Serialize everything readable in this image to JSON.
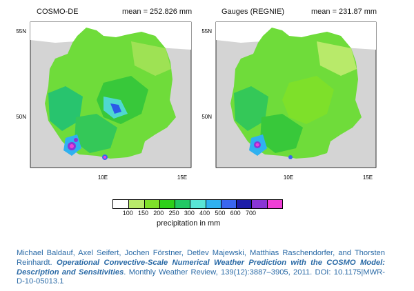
{
  "panels": [
    {
      "title": "COSMO-DE",
      "mean_label": "mean = 252.826 mm"
    },
    {
      "title": "Gauges (REGNIE)",
      "mean_label": "mean = 231.87 mm"
    }
  ],
  "axes": {
    "lat_ticks": [
      "55N",
      "50N"
    ],
    "lon_ticks": [
      "10E",
      "15E"
    ]
  },
  "colorbar": {
    "labels": [
      "100",
      "150",
      "200",
      "250",
      "300",
      "400",
      "500",
      "600",
      "700"
    ],
    "colors": [
      "#ffffff",
      "#b8ea6a",
      "#7ee02a",
      "#2ed01a",
      "#22c864",
      "#59e6d6",
      "#2fb1f0",
      "#3a66f0",
      "#1c1ca8",
      "#8a36d6",
      "#f03fd6"
    ],
    "unit": "precipitation  in  mm"
  },
  "citation": {
    "authors": "Michael Baldauf, Axel Seifert, Jochen Förstner, Detlev Majewski, Matthias Raschendorfer, and Thorsten Reinhardt.",
    "title": "Operational Convective-Scale Numerical Weather Prediction with the COSMO Model: Description and Sensitivities",
    "journal": ". Monthly Weather Review, 139(12):3887–3905, 2011. DOI: 10.1175|MWR-D-10-05013.1"
  }
}
